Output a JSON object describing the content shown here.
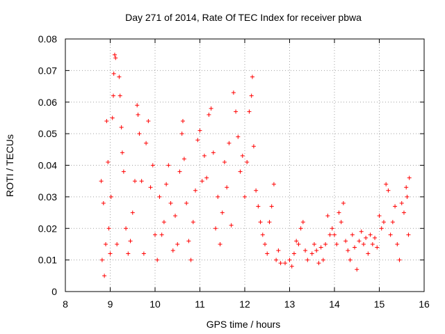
{
  "chart_data": {
    "type": "scatter",
    "title": "Day 271 of 2014, Rate Of TEC Index for receiver pbwa",
    "xlabel": "GPS time / hours",
    "ylabel": "ROTI / TECUs",
    "xlim": [
      8,
      16
    ],
    "ylim": [
      0,
      0.08
    ],
    "xticks": [
      "8",
      "9",
      "10",
      "11",
      "12",
      "13",
      "14",
      "15",
      "16"
    ],
    "yticks": [
      "0",
      "0.01",
      "0.02",
      "0.03",
      "0.04",
      "0.05",
      "0.06",
      "0.07",
      "0.08"
    ],
    "grid": true,
    "marker": "+",
    "color": "#ff0000",
    "series": [
      {
        "name": "ROTI",
        "points": [
          [
            8.8,
            0.035
          ],
          [
            8.82,
            0.01
          ],
          [
            8.85,
            0.028
          ],
          [
            8.87,
            0.005
          ],
          [
            8.9,
            0.015
          ],
          [
            8.92,
            0.054
          ],
          [
            8.95,
            0.041
          ],
          [
            8.97,
            0.02
          ],
          [
            9.0,
            0.012
          ],
          [
            9.02,
            0.03
          ],
          [
            9.05,
            0.055
          ],
          [
            9.07,
            0.062
          ],
          [
            9.08,
            0.069
          ],
          [
            9.1,
            0.075
          ],
          [
            9.12,
            0.074
          ],
          [
            9.15,
            0.015
          ],
          [
            9.2,
            0.068
          ],
          [
            9.22,
            0.062
          ],
          [
            9.25,
            0.052
          ],
          [
            9.27,
            0.044
          ],
          [
            9.3,
            0.038
          ],
          [
            9.35,
            0.02
          ],
          [
            9.4,
            0.012
          ],
          [
            9.45,
            0.016
          ],
          [
            9.5,
            0.025
          ],
          [
            9.55,
            0.035
          ],
          [
            9.6,
            0.059
          ],
          [
            9.62,
            0.056
          ],
          [
            9.65,
            0.05
          ],
          [
            9.7,
            0.035
          ],
          [
            9.75,
            0.012
          ],
          [
            9.8,
            0.047
          ],
          [
            9.85,
            0.054
          ],
          [
            9.9,
            0.033
          ],
          [
            9.95,
            0.04
          ],
          [
            10.0,
            0.018
          ],
          [
            10.05,
            0.01
          ],
          [
            10.1,
            0.03
          ],
          [
            10.15,
            0.018
          ],
          [
            10.2,
            0.022
          ],
          [
            10.25,
            0.034
          ],
          [
            10.3,
            0.04
          ],
          [
            10.35,
            0.028
          ],
          [
            10.4,
            0.013
          ],
          [
            10.45,
            0.024
          ],
          [
            10.5,
            0.015
          ],
          [
            10.55,
            0.038
          ],
          [
            10.6,
            0.05
          ],
          [
            10.62,
            0.054
          ],
          [
            10.65,
            0.042
          ],
          [
            10.7,
            0.028
          ],
          [
            10.75,
            0.016
          ],
          [
            10.8,
            0.01
          ],
          [
            10.85,
            0.022
          ],
          [
            10.9,
            0.032
          ],
          [
            10.95,
            0.048
          ],
          [
            11.0,
            0.051
          ],
          [
            11.05,
            0.035
          ],
          [
            11.1,
            0.043
          ],
          [
            11.15,
            0.036
          ],
          [
            11.2,
            0.056
          ],
          [
            11.25,
            0.058
          ],
          [
            11.3,
            0.044
          ],
          [
            11.35,
            0.02
          ],
          [
            11.4,
            0.03
          ],
          [
            11.45,
            0.015
          ],
          [
            11.5,
            0.025
          ],
          [
            11.55,
            0.041
          ],
          [
            11.6,
            0.033
          ],
          [
            11.65,
            0.047
          ],
          [
            11.7,
            0.021
          ],
          [
            11.75,
            0.063
          ],
          [
            11.8,
            0.057
          ],
          [
            11.85,
            0.049
          ],
          [
            11.9,
            0.038
          ],
          [
            11.95,
            0.043
          ],
          [
            12.0,
            0.03
          ],
          [
            12.05,
            0.041
          ],
          [
            12.1,
            0.057
          ],
          [
            12.15,
            0.062
          ],
          [
            12.17,
            0.068
          ],
          [
            12.2,
            0.046
          ],
          [
            12.25,
            0.032
          ],
          [
            12.3,
            0.027
          ],
          [
            12.35,
            0.022
          ],
          [
            12.4,
            0.018
          ],
          [
            12.45,
            0.015
          ],
          [
            12.5,
            0.012
          ],
          [
            12.55,
            0.022
          ],
          [
            12.6,
            0.027
          ],
          [
            12.65,
            0.034
          ],
          [
            12.7,
            0.01
          ],
          [
            12.75,
            0.013
          ],
          [
            12.8,
            0.009
          ],
          [
            12.9,
            0.009
          ],
          [
            13.0,
            0.01
          ],
          [
            13.05,
            0.008
          ],
          [
            13.1,
            0.012
          ],
          [
            13.15,
            0.016
          ],
          [
            13.2,
            0.015
          ],
          [
            13.25,
            0.02
          ],
          [
            13.3,
            0.022
          ],
          [
            13.35,
            0.013
          ],
          [
            13.4,
            0.01
          ],
          [
            13.5,
            0.012
          ],
          [
            13.55,
            0.015
          ],
          [
            13.6,
            0.013
          ],
          [
            13.65,
            0.009
          ],
          [
            13.7,
            0.014
          ],
          [
            13.75,
            0.01
          ],
          [
            13.8,
            0.015
          ],
          [
            13.85,
            0.024
          ],
          [
            13.9,
            0.018
          ],
          [
            13.95,
            0.02
          ],
          [
            14.0,
            0.018
          ],
          [
            14.05,
            0.015
          ],
          [
            14.1,
            0.025
          ],
          [
            14.15,
            0.022
          ],
          [
            14.2,
            0.028
          ],
          [
            14.25,
            0.016
          ],
          [
            14.3,
            0.013
          ],
          [
            14.35,
            0.01
          ],
          [
            14.4,
            0.018
          ],
          [
            14.45,
            0.014
          ],
          [
            14.5,
            0.007
          ],
          [
            14.55,
            0.016
          ],
          [
            14.6,
            0.019
          ],
          [
            14.65,
            0.015
          ],
          [
            14.7,
            0.017
          ],
          [
            14.75,
            0.012
          ],
          [
            14.8,
            0.018
          ],
          [
            14.85,
            0.015
          ],
          [
            14.9,
            0.017
          ],
          [
            14.95,
            0.014
          ],
          [
            15.0,
            0.024
          ],
          [
            15.05,
            0.02
          ],
          [
            15.1,
            0.022
          ],
          [
            15.15,
            0.034
          ],
          [
            15.2,
            0.032
          ],
          [
            15.25,
            0.018
          ],
          [
            15.3,
            0.022
          ],
          [
            15.35,
            0.027
          ],
          [
            15.4,
            0.015
          ],
          [
            15.45,
            0.01
          ],
          [
            15.5,
            0.028
          ],
          [
            15.55,
            0.025
          ],
          [
            15.6,
            0.033
          ],
          [
            15.62,
            0.03
          ],
          [
            15.65,
            0.018
          ],
          [
            15.67,
            0.036
          ]
        ]
      }
    ]
  }
}
